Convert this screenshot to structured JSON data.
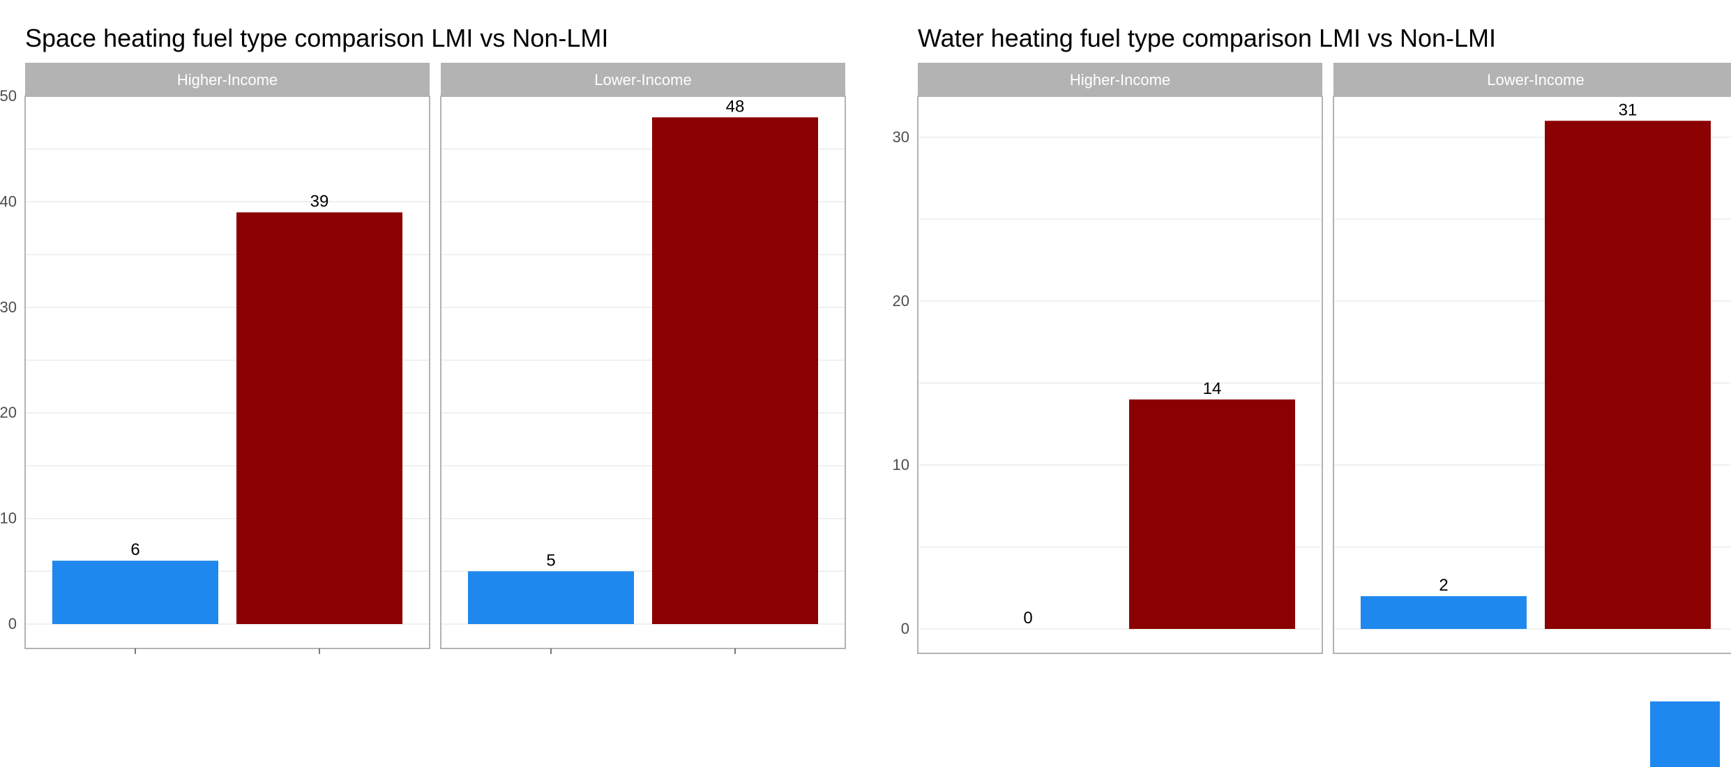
{
  "colors": {
    "strip_bg": "#b3b3b3",
    "strip_text": "#ffffff",
    "panel_border": "#b3b3b3",
    "grid": "#ebebeb",
    "tick_text": "#4d4d4d",
    "label_text": "#000000",
    "bar_blue": "#1e88ee",
    "bar_red": "#8b0000"
  },
  "chart_data": [
    {
      "type": "bar",
      "title": "Space heating fuel type comparison LMI vs Non-LMI",
      "ylim": [
        0,
        50
      ],
      "y_ticks": [
        0,
        10,
        20,
        30,
        40,
        50
      ],
      "grid": true,
      "facets": [
        {
          "label": "Higher-Income",
          "values": [
            6,
            39
          ],
          "labels": [
            "6",
            "39"
          ]
        },
        {
          "label": "Lower-Income",
          "values": [
            5,
            48
          ],
          "labels": [
            "5",
            "48"
          ]
        }
      ]
    },
    {
      "type": "bar",
      "title": "Water heating fuel type comparison LMI vs Non-LMI",
      "ylim": [
        0,
        32.5
      ],
      "y_ticks": [
        0,
        10,
        20,
        30
      ],
      "grid": true,
      "facets": [
        {
          "label": "Higher-Income",
          "values": [
            0,
            14
          ],
          "labels": [
            "0",
            "14"
          ]
        },
        {
          "label": "Lower-Income",
          "values": [
            2,
            31
          ],
          "labels": [
            "2",
            "31"
          ]
        }
      ]
    }
  ]
}
